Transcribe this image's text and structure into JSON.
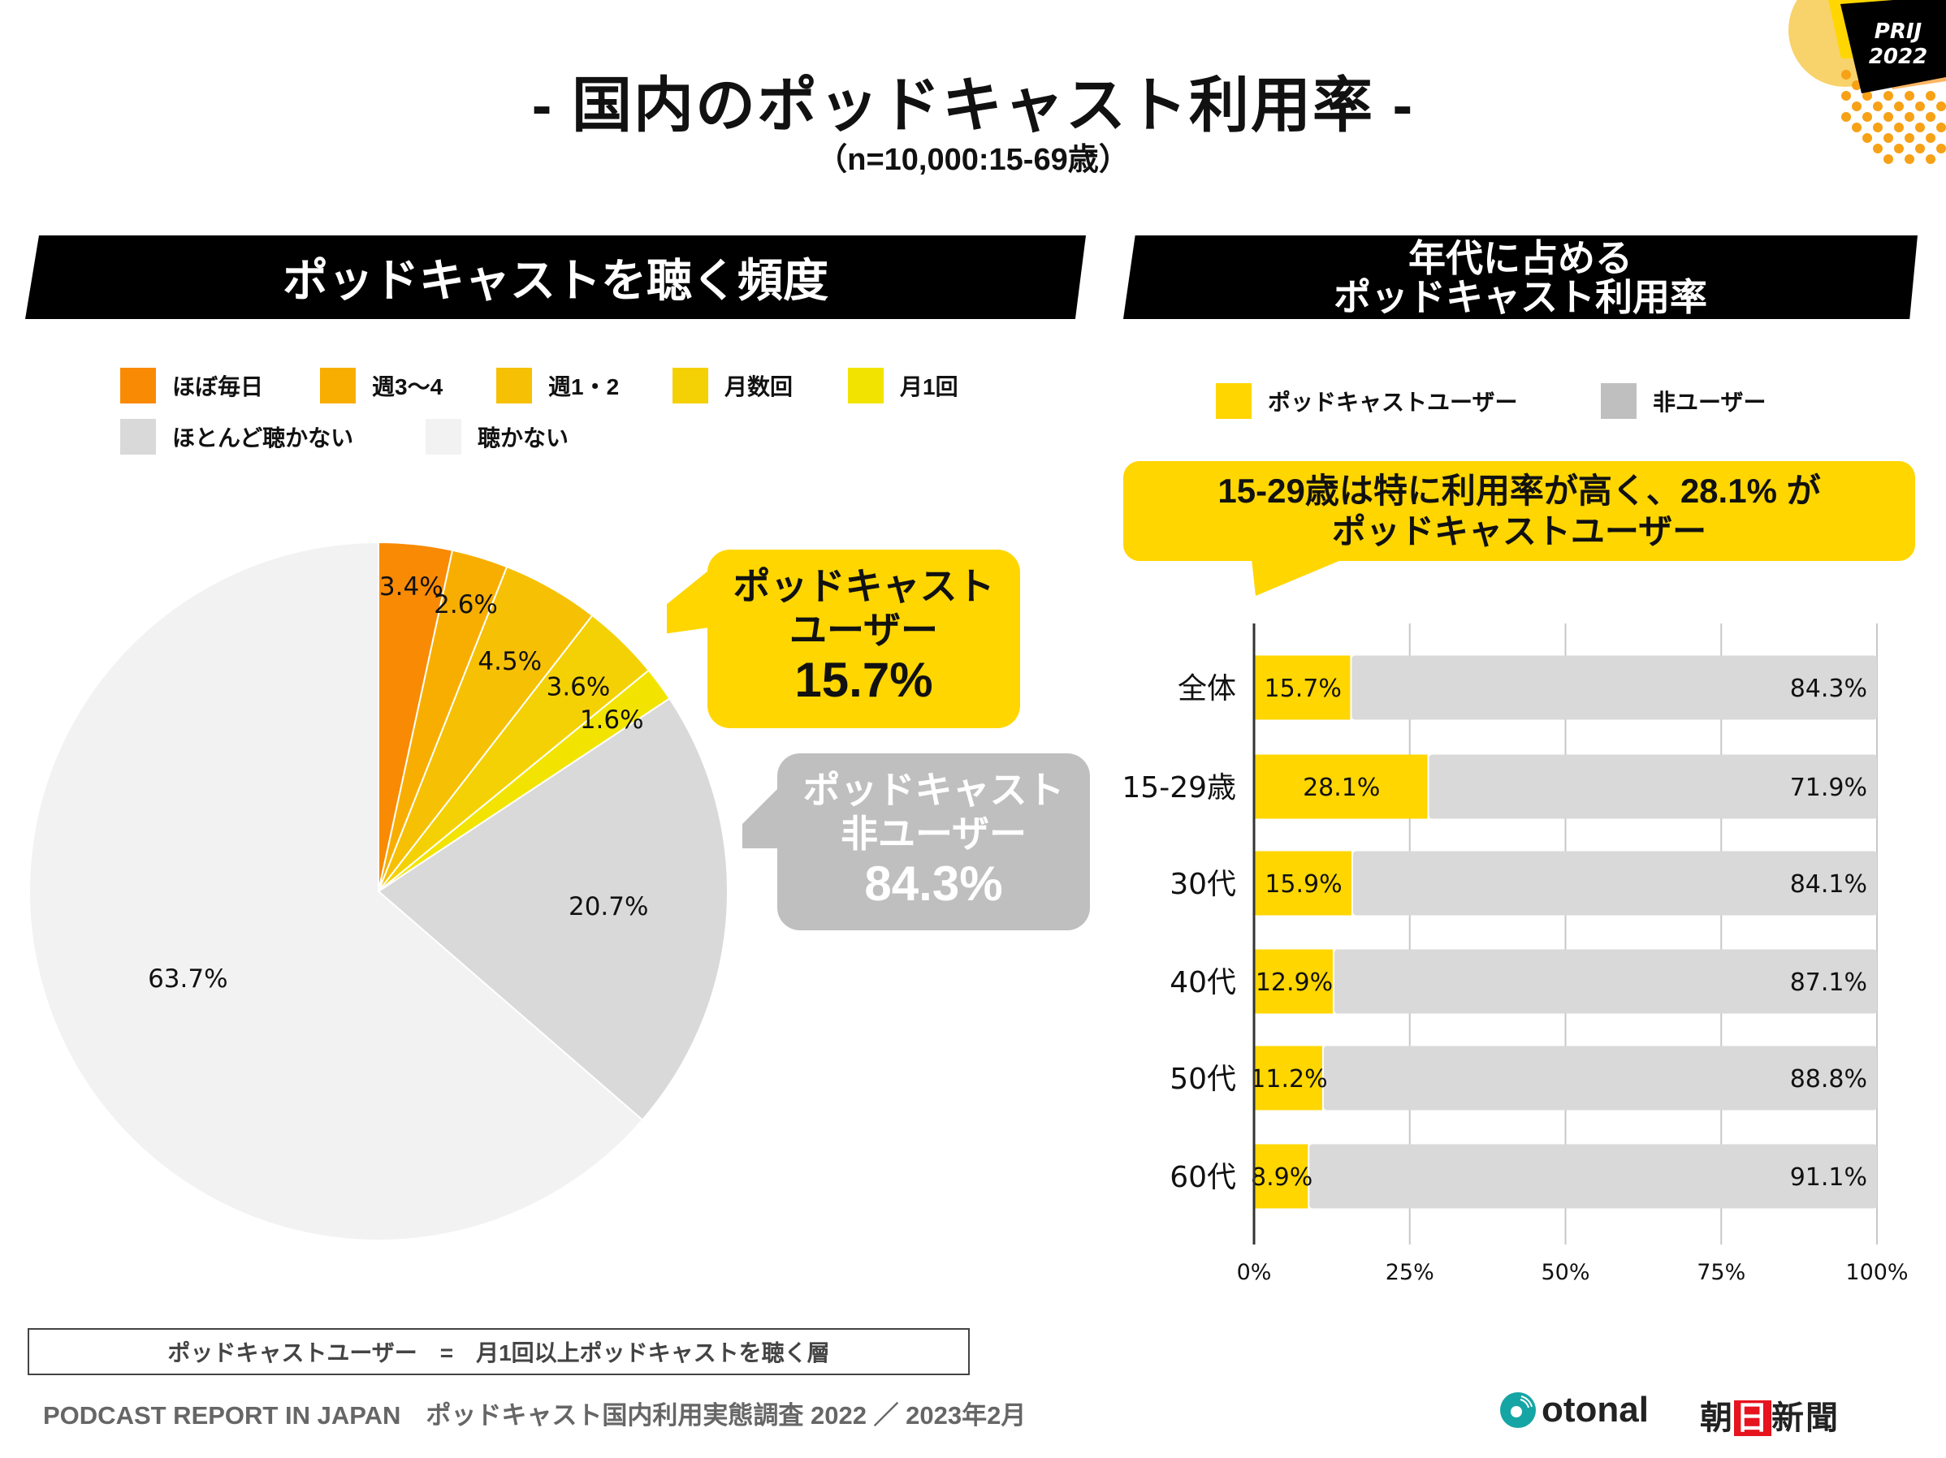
{
  "title": "- 国内のポッドキャスト利用率 -",
  "subtitle": "（n=10,000:15-69歳）",
  "badge": {
    "line1": "PRIJ",
    "line2": "2022"
  },
  "left_panel": {
    "header": "ポッドキャストを聴く頻度",
    "legend": [
      {
        "label": "ほぼ毎日",
        "color": "#F98A04"
      },
      {
        "label": "週3〜4",
        "color": "#F8AE00"
      },
      {
        "label": "週1・2",
        "color": "#F6C004"
      },
      {
        "label": "月数回",
        "color": "#F4D105"
      },
      {
        "label": "月1回",
        "color": "#F2E400"
      },
      {
        "label": "ほとんど聴かない",
        "color": "#D9D9D9"
      },
      {
        "label": "聴かない",
        "color": "#F2F2F2"
      }
    ],
    "callout_user": {
      "line1": "ポッドキャスト",
      "line2": "ユーザー",
      "value": "15.7%",
      "color": "#FFD600"
    },
    "callout_nonuser": {
      "line1": "ポッドキャスト",
      "line2": "非ユーザー",
      "value": "84.3%",
      "color": "#BFBFBF"
    }
  },
  "right_panel": {
    "header_line1": "年代に占める",
    "header_line2": "ポッドキャスト利用率",
    "legend": [
      {
        "label": "ポッドキャストユーザー",
        "color": "#FFD600"
      },
      {
        "label": "非ユーザー",
        "color": "#BFBFBF"
      }
    ],
    "callout": {
      "line1": "15-29歳は特に利用率が高く、28.1% が",
      "line2": "ポッドキャストユーザー",
      "color": "#FFD600"
    }
  },
  "chart_data": [
    {
      "type": "pie",
      "title": "ポッドキャストを聴く頻度",
      "start_angle": "12 o'clock, clockwise",
      "categories": [
        "ほぼ毎日",
        "週3〜4",
        "週1・2",
        "月数回",
        "月1回",
        "ほとんど聴かない",
        "聴かない"
      ],
      "values": [
        3.4,
        2.6,
        4.5,
        3.6,
        1.6,
        20.7,
        63.7
      ],
      "labels": [
        "3.4%",
        "2.6%",
        "4.5%",
        "3.6%",
        "1.6%",
        "20.7%",
        "63.7%"
      ],
      "colors": [
        "#F98A04",
        "#F8AE00",
        "#F6C004",
        "#F4D105",
        "#F2E400",
        "#D9D9D9",
        "#F2F2F2"
      ],
      "legend": "top"
    },
    {
      "type": "bar",
      "orientation": "horizontal-stacked-100",
      "title": "年代に占めるポッドキャスト利用率",
      "categories": [
        "全体",
        "15-29歳",
        "30代",
        "40代",
        "50代",
        "60代"
      ],
      "series": [
        {
          "name": "ポッドキャストユーザー",
          "values": [
            15.7,
            28.1,
            15.9,
            12.9,
            11.2,
            8.9
          ],
          "labels": [
            "15.7%",
            "28.1%",
            "15.9%",
            "12.9%",
            "11.2%",
            "8.9%"
          ],
          "color": "#FFD600"
        },
        {
          "name": "非ユーザー",
          "values": [
            84.3,
            71.9,
            84.1,
            87.1,
            88.8,
            91.1
          ],
          "labels": [
            "84.3%",
            "71.9%",
            "84.1%",
            "87.1%",
            "88.8%",
            "91.1%"
          ],
          "color": "#D9D9D9"
        }
      ],
      "xlim": [
        0,
        100
      ],
      "xticks": [
        "0%",
        "25%",
        "50%",
        "75%",
        "100%"
      ],
      "grid": true,
      "legend": "top"
    }
  ],
  "footer": {
    "definition": "ポッドキャストユーザー　=　月1回以上ポッドキャストを聴く層",
    "source": "PODCAST REPORT IN JAPAN　ポッドキャスト国内利用実態調査 2022 ／ 2023年2月",
    "logo1": "otonal",
    "logo2_a": "朝",
    "logo2_b": "日",
    "logo2_c": "新聞"
  }
}
